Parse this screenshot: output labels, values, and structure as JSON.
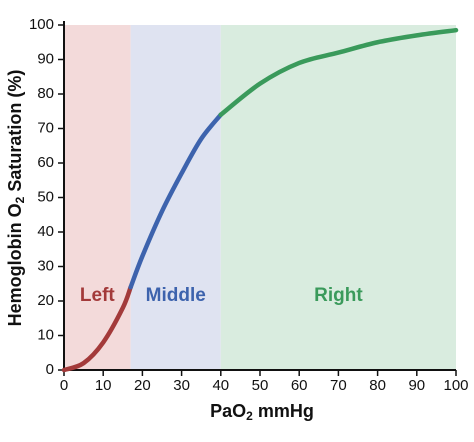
{
  "chart_data": {
    "type": "line",
    "xlabel": [
      "PaO",
      "2",
      " mmHg"
    ],
    "ylabel": [
      "Hemoglobin O",
      "2",
      " Saturation (%)"
    ],
    "x": [
      0,
      5,
      10,
      15,
      17,
      20,
      25,
      30,
      35,
      40,
      50,
      60,
      70,
      80,
      90,
      100
    ],
    "series": [
      {
        "name": "Left",
        "color": "#a33a3a",
        "values": [
          0,
          2,
          8,
          18,
          24,
          null,
          null,
          null,
          null,
          null,
          null,
          null,
          null,
          null,
          null,
          null
        ]
      },
      {
        "name": "Middle",
        "color": "#3d63ad",
        "values": [
          null,
          null,
          null,
          null,
          24,
          33,
          46,
          57,
          67,
          74,
          null,
          null,
          null,
          null,
          null,
          null
        ]
      },
      {
        "name": "Right",
        "color": "#3a9a5b",
        "values": [
          null,
          null,
          null,
          null,
          null,
          null,
          null,
          null,
          null,
          74,
          83,
          89,
          92,
          95,
          97,
          98.5
        ]
      }
    ],
    "regions": [
      {
        "from": 0,
        "to": 17,
        "color": "#f3dada"
      },
      {
        "from": 17,
        "to": 40,
        "color": "#dfe3f1"
      },
      {
        "from": 40,
        "to": 100,
        "color": "#d9ecdf"
      }
    ],
    "xlim": [
      0,
      100
    ],
    "ylim": [
      0,
      100
    ],
    "xticks": [
      0,
      10,
      20,
      30,
      40,
      50,
      60,
      70,
      80,
      90,
      100
    ],
    "yticks": [
      0,
      10,
      20,
      30,
      40,
      50,
      60,
      70,
      80,
      90,
      100
    ],
    "grid": false
  }
}
